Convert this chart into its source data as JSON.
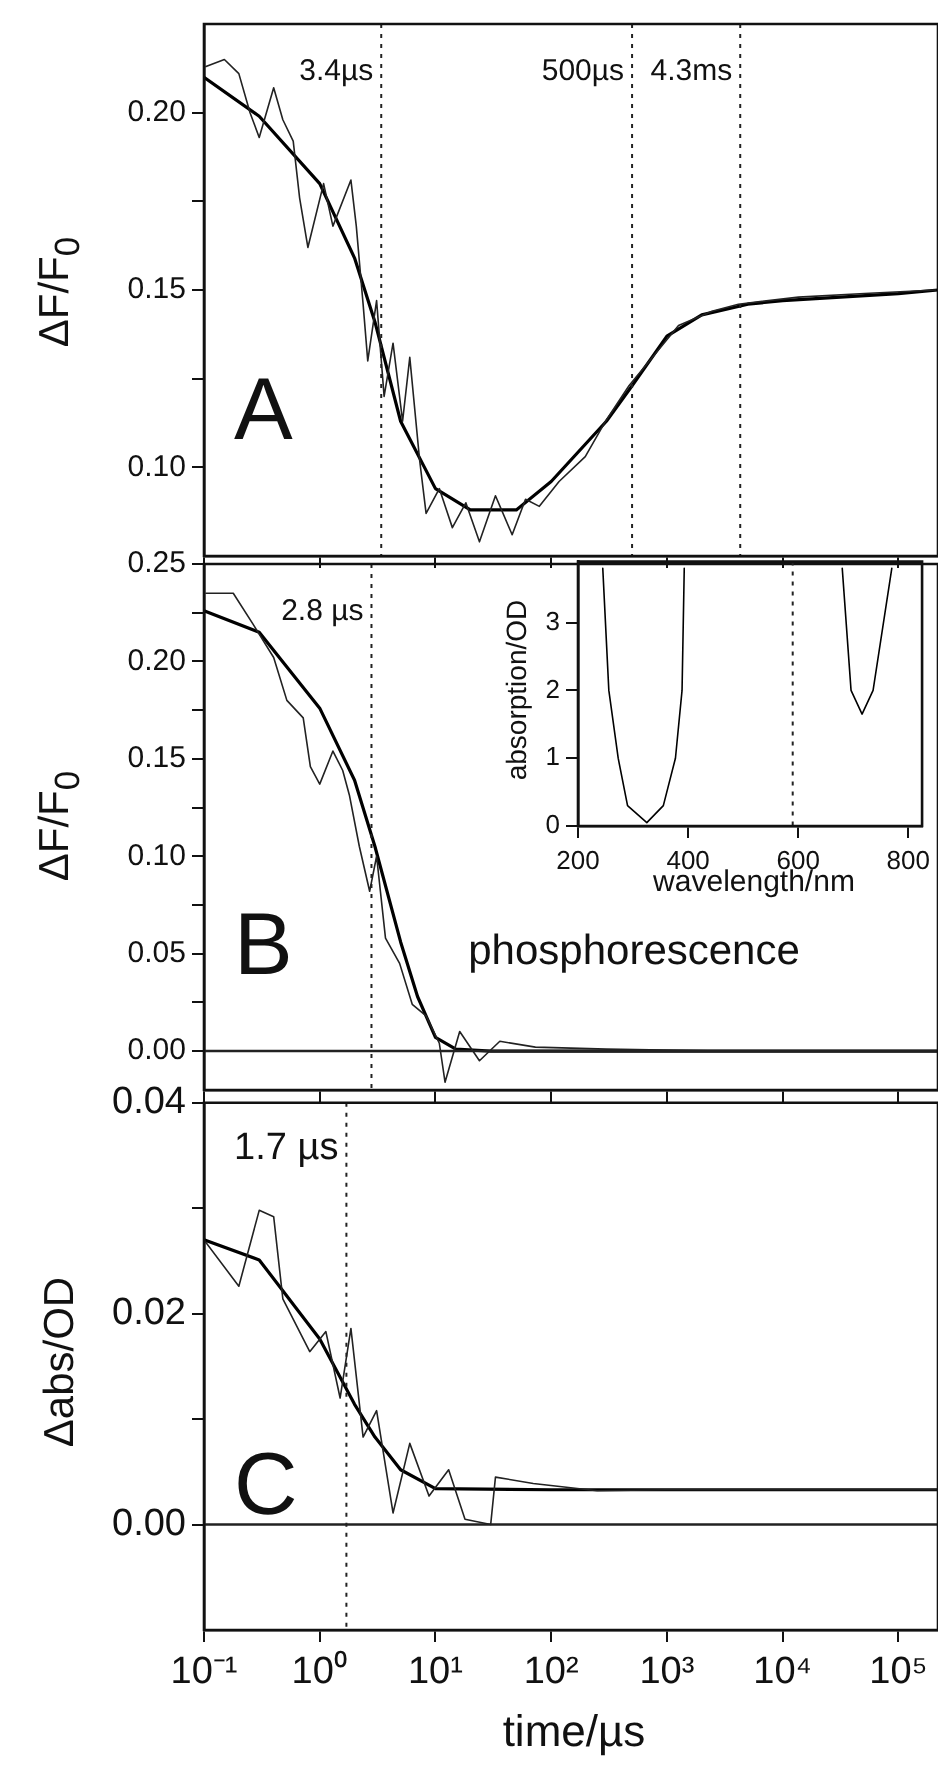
{
  "chart_data": [
    {
      "type": "line",
      "log": "x",
      "tick_labels": "y",
      "marker": "none",
      "ylabel": "ΔF/F$_{0}$",
      "xlim": [
        0.1,
        220000
      ],
      "xticks": [
        0.1,
        1,
        10,
        100,
        1000,
        10000,
        100000
      ],
      "ylim": [
        0.075,
        0.225
      ],
      "yticks": [
        {
          "value": 0.1,
          "label": "0.10"
        },
        {
          "value": 0.125,
          "label": null
        },
        {
          "value": 0.15,
          "label": "0.15"
        },
        {
          "value": 0.175,
          "label": null
        },
        {
          "value": 0.2,
          "label": "0.20"
        }
      ],
      "series": [
        {
          "color": "#222222",
          "x": [
            0.104,
            0.15,
            0.2,
            0.25,
            0.3,
            0.4,
            0.48,
            0.59,
            0.67,
            0.79,
            1.08,
            1.3,
            1.86,
            2.07,
            2.37,
            2.6,
            3.1,
            3.6,
            4.3,
            5.2,
            6.0,
            7.3,
            8.3,
            10.8,
            14,
            18.3,
            24,
            33,
            46,
            60,
            79,
            117,
            197,
            295,
            470,
            747,
            1260,
            2450,
            4150,
            13700,
            51000,
            210000
          ],
          "values": [
            0.213,
            0.215,
            0.211,
            0.2,
            0.193,
            0.207,
            0.198,
            0.192,
            0.176,
            0.162,
            0.18,
            0.168,
            0.181,
            0.168,
            0.146,
            0.13,
            0.147,
            0.12,
            0.135,
            0.113,
            0.131,
            0.102,
            0.087,
            0.094,
            0.083,
            0.09,
            0.079,
            0.092,
            0.081,
            0.091,
            0.089,
            0.096,
            0.103,
            0.113,
            0.123,
            0.131,
            0.14,
            0.144,
            0.146,
            0.148,
            0.149,
            0.15
          ]
        },
        {
          "color": "#000000",
          "x": [
            0.1,
            0.3,
            1,
            2,
            3,
            5,
            10,
            20,
            50,
            100,
            300,
            500,
            1000,
            2000,
            5000,
            10000,
            100000,
            220000
          ],
          "values": [
            0.21,
            0.199,
            0.18,
            0.159,
            0.141,
            0.113,
            0.094,
            0.088,
            0.088,
            0.096,
            0.113,
            0.123,
            0.137,
            0.143,
            0.146,
            0.147,
            0.149,
            0.15
          ]
        }
      ],
      "ref_lines": [
        {
          "axis": "x",
          "value": 3.4,
          "label": "3.4µs",
          "line_style": "dotted"
        },
        {
          "axis": "x",
          "value": 500,
          "label": "500µs",
          "line_style": "dotted"
        },
        {
          "axis": "x",
          "value": 4300,
          "label": "4.3ms",
          "line_style": "dotted"
        }
      ],
      "annotations": [
        "A"
      ]
    },
    {
      "type": "line",
      "log": "x",
      "tick_labels": "y",
      "marker": "none",
      "ylabel": "ΔF/F$_{0}$",
      "xlim": [
        0.1,
        220000
      ],
      "xticks": [
        0.1,
        1,
        10,
        100,
        1000,
        10000,
        100000
      ],
      "ylim": [
        -0.02,
        0.25
      ],
      "yticks": [
        {
          "value": 0,
          "label": "0.00"
        },
        {
          "value": 0.025,
          "label": null
        },
        {
          "value": 0.05,
          "label": "0.05"
        },
        {
          "value": 0.075,
          "label": null
        },
        {
          "value": 0.1,
          "label": "0.10"
        },
        {
          "value": 0.125,
          "label": null
        },
        {
          "value": 0.15,
          "label": "0.15"
        },
        {
          "value": 0.175,
          "label": null
        },
        {
          "value": 0.2,
          "label": "0.20"
        },
        {
          "value": 0.225,
          "label": null
        },
        {
          "value": 0.25,
          "label": "0.25"
        }
      ],
      "series": [
        {
          "color": "#222222",
          "x": [
            0.104,
            0.179,
            0.266,
            0.4,
            0.52,
            0.72,
            0.83,
            1.0,
            1.3,
            1.58,
            1.81,
            2.2,
            2.7,
            3.1,
            3.7,
            4.9,
            6.3,
            8.3,
            10.8,
            12.1,
            16.2,
            24,
            36,
            73,
            300,
            3000,
            220000
          ],
          "values": [
            0.235,
            0.235,
            0.219,
            0.202,
            0.18,
            0.171,
            0.146,
            0.137,
            0.154,
            0.144,
            0.131,
            0.105,
            0.082,
            0.1,
            0.058,
            0.045,
            0.024,
            0.018,
            0.004,
            -0.016,
            0.01,
            -0.005,
            0.005,
            0.002,
            0.001,
            0,
            0
          ]
        },
        {
          "color": "#000000",
          "x": [
            0.1,
            0.3,
            1,
            2,
            3,
            5,
            7,
            10,
            15,
            30,
            220000
          ],
          "values": [
            0.226,
            0.215,
            0.176,
            0.139,
            0.105,
            0.056,
            0.028,
            0.007,
            0.001,
            0,
            0
          ]
        }
      ],
      "ref_lines": [
        {
          "axis": "x",
          "value": 2.8,
          "label": "2.8 µs",
          "line_style": "dotted"
        },
        {
          "axis": "y",
          "value": 0,
          "line_style": "solid"
        }
      ],
      "annotations": [
        "B",
        "phosphorescence"
      ]
    },
    {
      "type": "line",
      "marker": "none",
      "xlabel": "wavelength/nm",
      "ylabel": "absorption/OD",
      "xlim": [
        200,
        825
      ],
      "xticks": [
        200,
        400,
        600,
        800
      ],
      "ylim": [
        0,
        3.9
      ],
      "yticks": [
        0,
        1,
        2,
        3
      ],
      "series": [
        {
          "color": "#000000",
          "x": [
            245,
            256,
            273,
            290,
            325,
            355,
            377,
            389,
            393,
            500,
            680,
            696,
            716,
            736,
            770
          ],
          "values": [
            3.8,
            2.0,
            1.0,
            0.3,
            0.05,
            0.3,
            1.0,
            2.0,
            3.8,
            null,
            3.8,
            2.0,
            1.65,
            2.0,
            3.8
          ]
        }
      ],
      "ref_lines": [
        {
          "axis": "x",
          "value": 590,
          "line_style": "dotted"
        }
      ]
    },
    {
      "type": "line",
      "log": "x",
      "marker": "none",
      "xlabel": "time/µs",
      "ylabel": "Δabs/OD",
      "xlim": [
        0.1,
        220000
      ],
      "xticks": [
        {
          "value": 0.1,
          "label": "10⁻¹"
        },
        {
          "value": 1,
          "label": "10⁰"
        },
        {
          "value": 10,
          "label": "10¹"
        },
        {
          "value": 100,
          "label": "10²"
        },
        {
          "value": 1000,
          "label": "10³"
        },
        {
          "value": 10000,
          "label": "10⁴"
        },
        {
          "value": 100000,
          "label": "10⁵"
        }
      ],
      "ylim": [
        -0.01,
        0.04
      ],
      "yticks": [
        {
          "value": 0,
          "label": "0.00"
        },
        {
          "value": 0.01,
          "label": null
        },
        {
          "value": 0.02,
          "label": "0.02"
        },
        {
          "value": 0.03,
          "label": null
        },
        {
          "value": 0.04,
          "label": "0.04"
        }
      ],
      "series": [
        {
          "color": "#222222",
          "x": [
            0.1,
            0.2,
            0.3,
            0.4,
            0.48,
            0.82,
            1.13,
            1.5,
            1.86,
            2.37,
            3.1,
            4.3,
            6.0,
            8.8,
            13,
            18,
            30,
            33,
            70,
            250,
            1000,
            10000,
            220000
          ],
          "values": [
            0.027,
            0.0226,
            0.0298,
            0.0292,
            0.0214,
            0.0164,
            0.0183,
            0.012,
            0.0186,
            0.0083,
            0.0108,
            0.0011,
            0.0077,
            0.0027,
            0.0052,
            0.0005,
            0.0,
            0.0045,
            0.0039,
            0.0032,
            0.0033,
            0.0033,
            0.0033
          ]
        },
        {
          "color": "#000000",
          "x": [
            0.1,
            0.3,
            1,
            2,
            3,
            5,
            10,
            100,
            220000
          ],
          "values": [
            0.027,
            0.0251,
            0.0176,
            0.0114,
            0.0083,
            0.0052,
            0.0034,
            0.0033,
            0.0033
          ]
        }
      ],
      "ref_lines": [
        {
          "axis": "x",
          "value": 1.7,
          "label": "1.7 µs",
          "line_style": "dotted"
        },
        {
          "axis": "y",
          "value": 0,
          "line_style": "solid"
        }
      ],
      "annotations": [
        "C"
      ]
    }
  ]
}
